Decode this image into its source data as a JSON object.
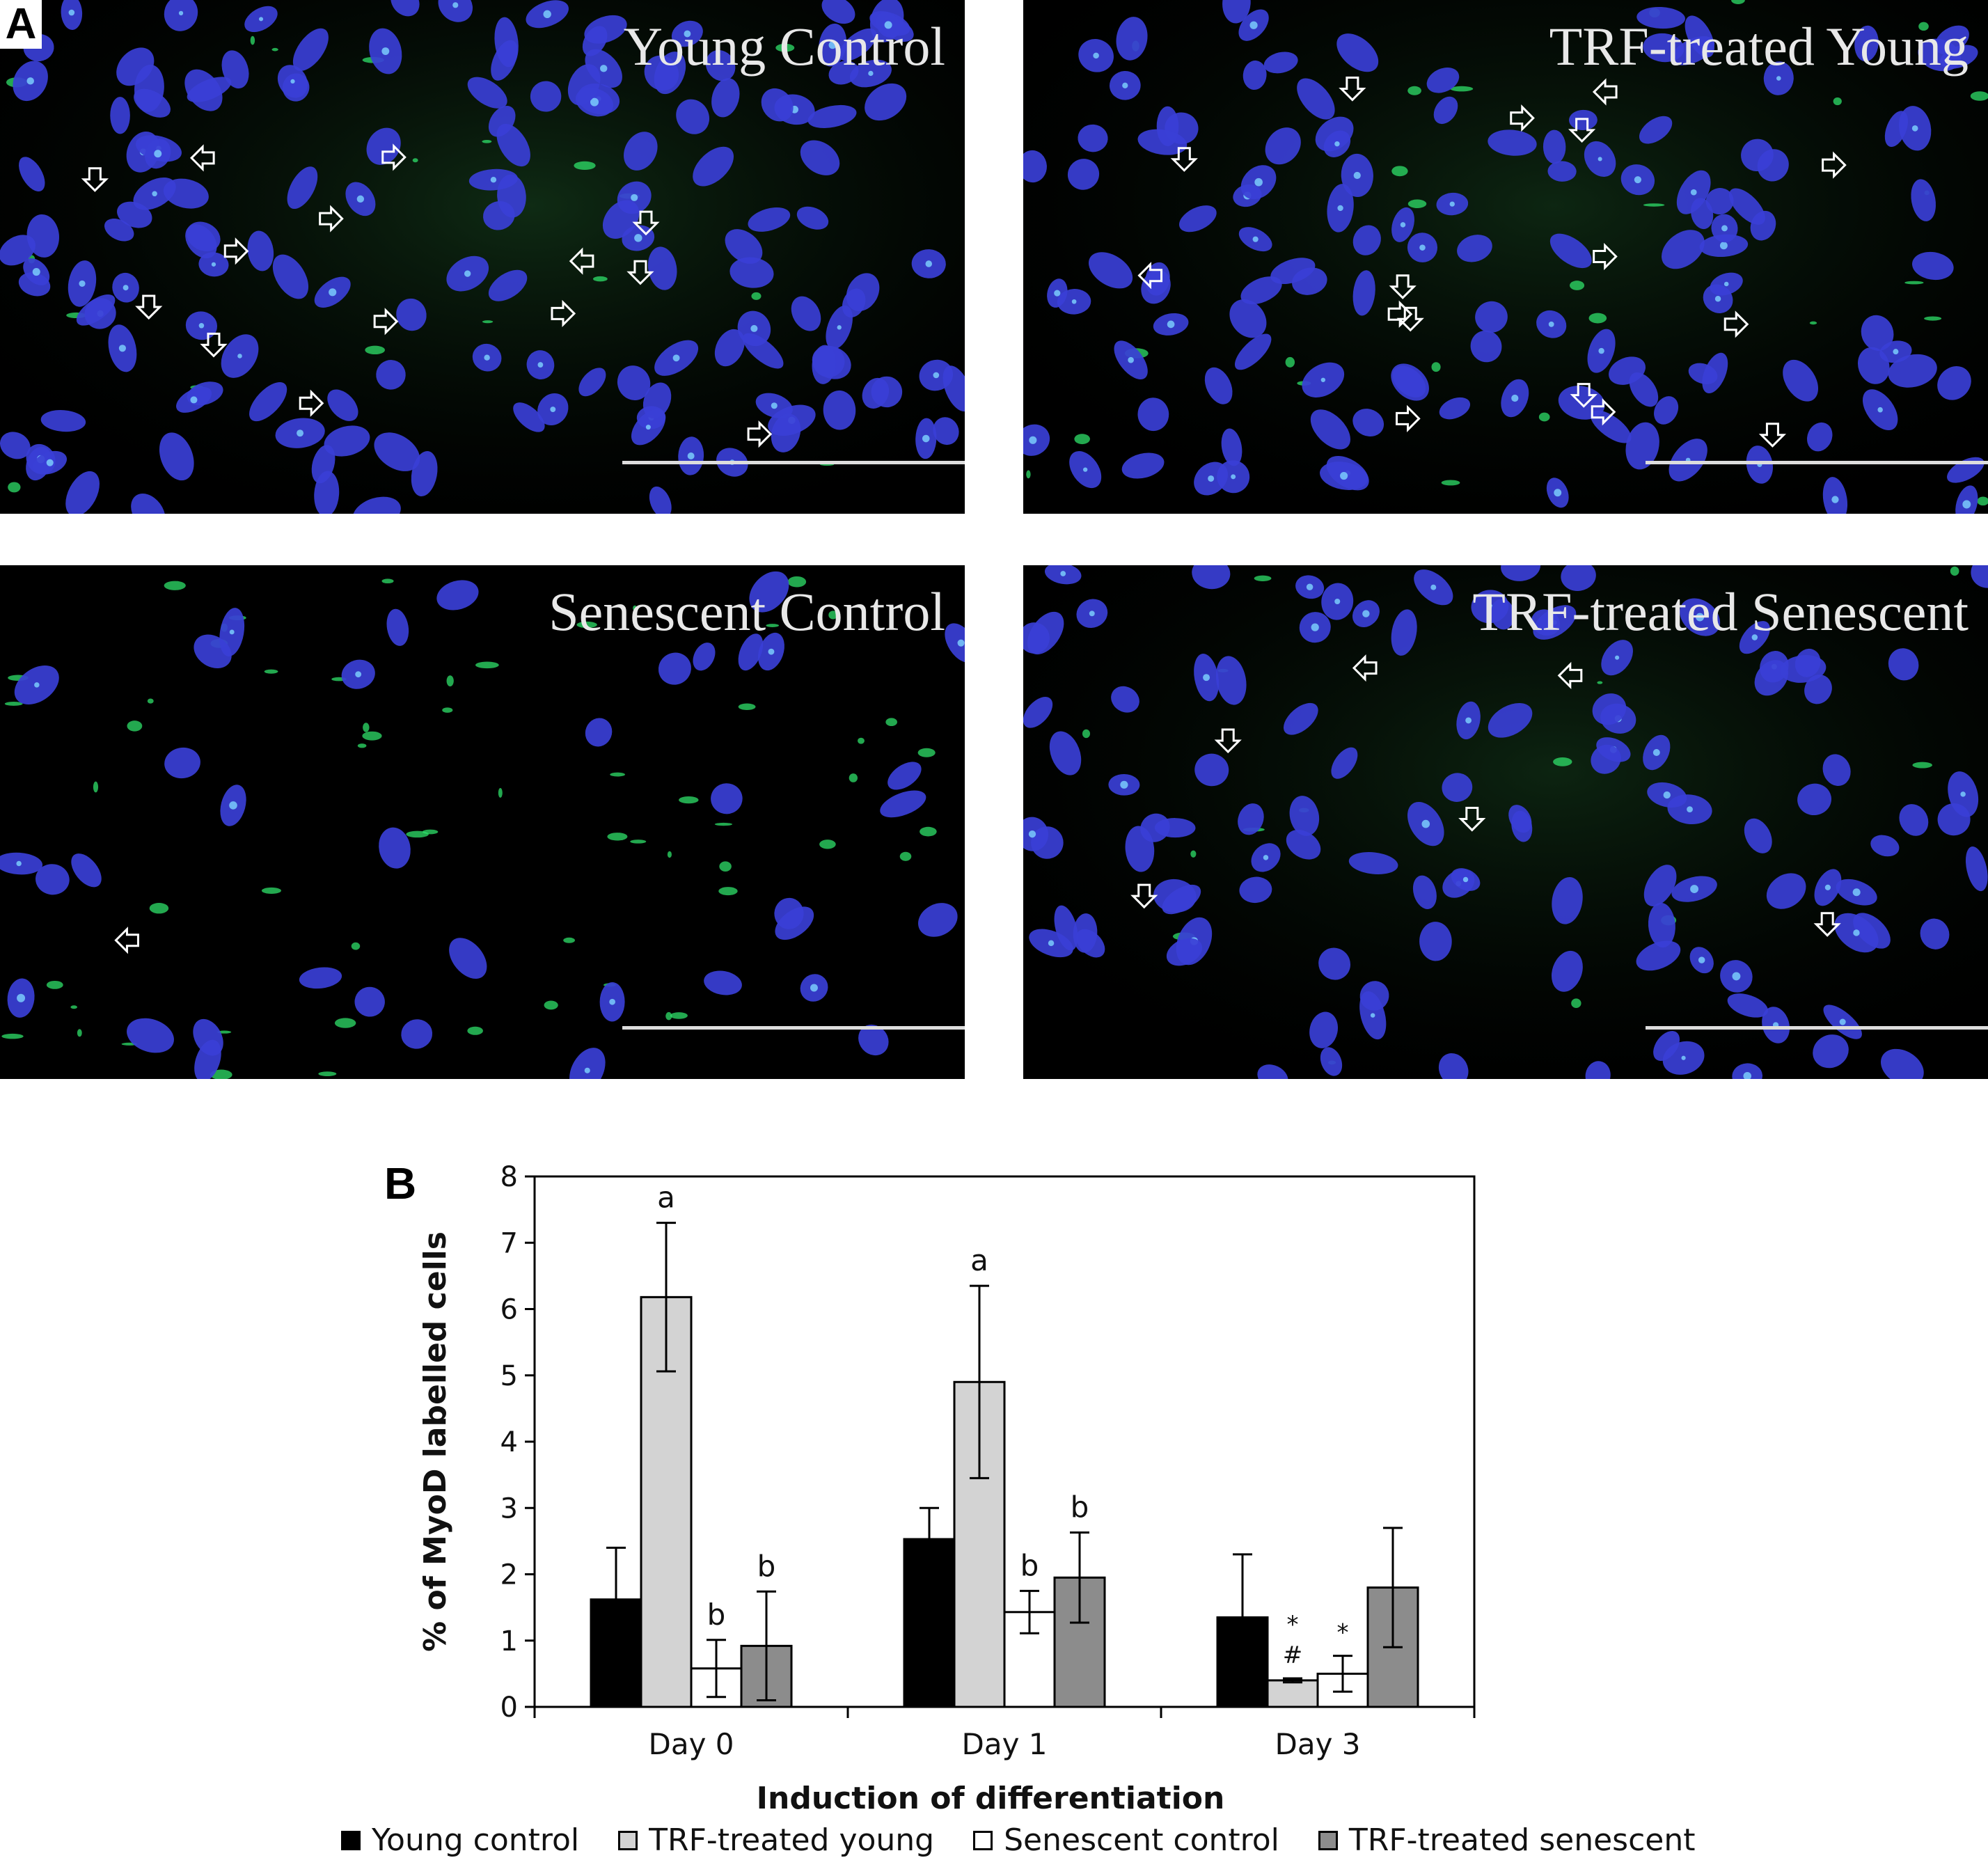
{
  "panel_a_label": "A",
  "panel_b_label": "B",
  "micrographs": [
    {
      "title": "Young Control"
    },
    {
      "title": "TRF-treated Young"
    },
    {
      "title": "Senescent Control"
    },
    {
      "title": "TRF-treated Senescent"
    }
  ],
  "colors": {
    "young_control": "#000000",
    "trf_young": "#d3d3d3",
    "senescent_control": "#ffffff",
    "trf_senescent": "#8c8c8c",
    "nuclei": "#3a3fd6",
    "myod_stain": "#2fe06a"
  },
  "chart_data": {
    "type": "bar",
    "title": "",
    "xlabel": "Induction of differentiation",
    "ylabel": "% of MyoD labelled cells",
    "ylim": [
      0,
      8
    ],
    "yticks": [
      "0",
      "1",
      "2",
      "3",
      "4",
      "5",
      "6",
      "7",
      "8"
    ],
    "categories": [
      "Day 0",
      "Day 1",
      "Day 3"
    ],
    "series": [
      {
        "name": "Young control",
        "values": [
          1.62,
          2.53,
          1.35
        ],
        "errors": [
          0.78,
          0.47,
          0.95
        ],
        "labels": [
          "",
          "",
          ""
        ]
      },
      {
        "name": "TRF-treated young",
        "values": [
          6.18,
          4.9,
          0.4
        ],
        "errors": [
          1.12,
          1.45,
          0.03
        ],
        "labels": [
          "a",
          "a",
          "*#"
        ]
      },
      {
        "name": "Senescent control",
        "values": [
          0.58,
          1.43,
          0.5
        ],
        "errors": [
          0.43,
          0.32,
          0.27
        ],
        "labels": [
          "b",
          "b",
          "*"
        ]
      },
      {
        "name": "TRF-treated senescent",
        "values": [
          0.92,
          1.95,
          1.8
        ],
        "errors": [
          0.82,
          0.68,
          0.9
        ],
        "labels": [
          "b",
          "b",
          ""
        ]
      }
    ],
    "grid": false,
    "legend_position": "bottom"
  }
}
